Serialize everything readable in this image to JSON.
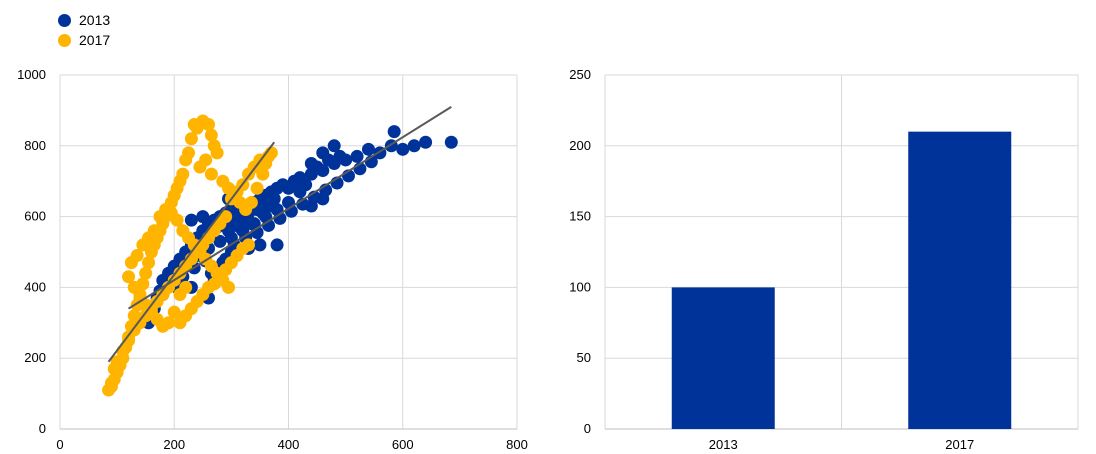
{
  "colors": {
    "s2013": "#003399",
    "s2017": "#FFB400",
    "trend": "#595959",
    "grid": "#d9d9d9"
  },
  "chart_data": [
    {
      "type": "scatter",
      "title": "",
      "xlabel": "",
      "ylabel": "",
      "xlim": [
        0,
        800
      ],
      "ylim": [
        0,
        1000
      ],
      "xticks": [
        "0",
        "200",
        "400",
        "600",
        "800"
      ],
      "yticks": [
        "0",
        "200",
        "400",
        "600",
        "800",
        "1000"
      ],
      "legend": "top-left",
      "grid": true,
      "series": [
        {
          "name": "2013",
          "color": "#003399",
          "points": [
            [
              150,
              350
            ],
            [
              160,
              330
            ],
            [
              170,
              370
            ],
            [
              175,
              390
            ],
            [
              180,
              420
            ],
            [
              185,
              400
            ],
            [
              190,
              440
            ],
            [
              195,
              430
            ],
            [
              200,
              460
            ],
            [
              205,
              450
            ],
            [
              210,
              480
            ],
            [
              215,
              470
            ],
            [
              220,
              500
            ],
            [
              225,
              490
            ],
            [
              230,
              520
            ],
            [
              235,
              510
            ],
            [
              240,
              540
            ],
            [
              245,
              530
            ],
            [
              250,
              560
            ],
            [
              255,
              550
            ],
            [
              260,
              580
            ],
            [
              265,
              560
            ],
            [
              270,
              590
            ],
            [
              275,
              570
            ],
            [
              280,
              600
            ],
            [
              285,
              580
            ],
            [
              290,
              610
            ],
            [
              295,
              560
            ],
            [
              300,
              620
            ],
            [
              305,
              590
            ],
            [
              310,
              600
            ],
            [
              315,
              570
            ],
            [
              320,
              630
            ],
            [
              325,
              600
            ],
            [
              330,
              610
            ],
            [
              335,
              580
            ],
            [
              340,
              640
            ],
            [
              345,
              620
            ],
            [
              350,
              650
            ],
            [
              355,
              610
            ],
            [
              360,
              660
            ],
            [
              365,
              630
            ],
            [
              370,
              670
            ],
            [
              375,
              650
            ],
            [
              380,
              680
            ],
            [
              390,
              690
            ],
            [
              400,
              680
            ],
            [
              410,
              700
            ],
            [
              420,
              710
            ],
            [
              430,
              690
            ],
            [
              440,
              720
            ],
            [
              450,
              740
            ],
            [
              460,
              730
            ],
            [
              470,
              760
            ],
            [
              480,
              750
            ],
            [
              490,
              770
            ],
            [
              500,
              760
            ],
            [
              520,
              770
            ],
            [
              540,
              790
            ],
            [
              560,
              780
            ],
            [
              580,
              800
            ],
            [
              600,
              790
            ],
            [
              620,
              800
            ],
            [
              640,
              810
            ],
            [
              685,
              810
            ],
            [
              585,
              840
            ],
            [
              480,
              800
            ],
            [
              460,
              780
            ],
            [
              440,
              750
            ],
            [
              420,
              670
            ],
            [
              400,
              640
            ],
            [
              380,
              620
            ],
            [
              360,
              600
            ],
            [
              340,
              580
            ],
            [
              320,
              560
            ],
            [
              300,
              540
            ],
            [
              280,
              530
            ],
            [
              260,
              510
            ],
            [
              240,
              490
            ],
            [
              220,
              470
            ],
            [
              200,
              420
            ],
            [
              180,
              380
            ],
            [
              165,
              340
            ],
            [
              155,
              300
            ],
            [
              230,
              400
            ],
            [
              260,
              370
            ],
            [
              270,
              420
            ],
            [
              290,
              480
            ],
            [
              300,
              500
            ],
            [
              330,
              510
            ],
            [
              350,
              520
            ],
            [
              380,
              520
            ],
            [
              310,
              640
            ],
            [
              295,
              650
            ],
            [
              250,
              600
            ],
            [
              230,
              590
            ],
            [
              205,
              400
            ],
            [
              215,
              430
            ],
            [
              235,
              455
            ],
            [
              255,
              475
            ],
            [
              265,
              440
            ],
            [
              285,
              470
            ],
            [
              305,
              520
            ],
            [
              325,
              540
            ],
            [
              345,
              555
            ],
            [
              365,
              575
            ],
            [
              385,
              595
            ],
            [
              405,
              615
            ],
            [
              425,
              635
            ],
            [
              445,
              655
            ],
            [
              465,
              675
            ],
            [
              485,
              695
            ],
            [
              505,
              715
            ],
            [
              525,
              735
            ],
            [
              545,
              755
            ],
            [
              440,
              630
            ],
            [
              460,
              650
            ]
          ]
        },
        {
          "name": "2017",
          "color": "#FFB400",
          "points": [
            [
              85,
              110
            ],
            [
              90,
              120
            ],
            [
              95,
              140
            ],
            [
              100,
              160
            ],
            [
              105,
              180
            ],
            [
              110,
              200
            ],
            [
              115,
              230
            ],
            [
              120,
              260
            ],
            [
              125,
              290
            ],
            [
              130,
              320
            ],
            [
              135,
              350
            ],
            [
              140,
              380
            ],
            [
              145,
              410
            ],
            [
              150,
              440
            ],
            [
              155,
              470
            ],
            [
              160,
              500
            ],
            [
              165,
              520
            ],
            [
              170,
              540
            ],
            [
              175,
              560
            ],
            [
              180,
              580
            ],
            [
              185,
              600
            ],
            [
              190,
              620
            ],
            [
              195,
              640
            ],
            [
              200,
              660
            ],
            [
              205,
              680
            ],
            [
              210,
              700
            ],
            [
              215,
              720
            ],
            [
              220,
              760
            ],
            [
              225,
              780
            ],
            [
              230,
              820
            ],
            [
              235,
              860
            ],
            [
              240,
              850
            ],
            [
              250,
              870
            ],
            [
              260,
              860
            ],
            [
              265,
              830
            ],
            [
              270,
              800
            ],
            [
              275,
              780
            ],
            [
              255,
              760
            ],
            [
              245,
              740
            ],
            [
              265,
              720
            ],
            [
              285,
              700
            ],
            [
              295,
              680
            ],
            [
              305,
              660
            ],
            [
              315,
              640
            ],
            [
              325,
              620
            ],
            [
              335,
              640
            ],
            [
              345,
              680
            ],
            [
              355,
              720
            ],
            [
              360,
              750
            ],
            [
              365,
              770
            ],
            [
              370,
              780
            ],
            [
              350,
              760
            ],
            [
              340,
              740
            ],
            [
              330,
              720
            ],
            [
              320,
              690
            ],
            [
              310,
              670
            ],
            [
              300,
              650
            ],
            [
              290,
              600
            ],
            [
              280,
              580
            ],
            [
              270,
              560
            ],
            [
              260,
              540
            ],
            [
              250,
              520
            ],
            [
              240,
              500
            ],
            [
              230,
              480
            ],
            [
              220,
              460
            ],
            [
              210,
              440
            ],
            [
              200,
              420
            ],
            [
              190,
              400
            ],
            [
              180,
              380
            ],
            [
              170,
              360
            ],
            [
              160,
              340
            ],
            [
              150,
              320
            ],
            [
              140,
              300
            ],
            [
              130,
              280
            ],
            [
              120,
              250
            ],
            [
              110,
              220
            ],
            [
              100,
              190
            ],
            [
              95,
              170
            ],
            [
              90,
              130
            ],
            [
              200,
              330
            ],
            [
              210,
              300
            ],
            [
              220,
              320
            ],
            [
              230,
              340
            ],
            [
              240,
              360
            ],
            [
              250,
              380
            ],
            [
              260,
              400
            ],
            [
              270,
              410
            ],
            [
              280,
              430
            ],
            [
              290,
              450
            ],
            [
              300,
              470
            ],
            [
              310,
              490
            ],
            [
              320,
              510
            ],
            [
              330,
              520
            ],
            [
              190,
              300
            ],
            [
              180,
              290
            ],
            [
              170,
              310
            ],
            [
              160,
              330
            ],
            [
              150,
              350
            ],
            [
              140,
              370
            ],
            [
              130,
              400
            ],
            [
              120,
              430
            ],
            [
              125,
              470
            ],
            [
              135,
              490
            ],
            [
              145,
              520
            ],
            [
              155,
              540
            ],
            [
              165,
              560
            ],
            [
              175,
              600
            ],
            [
              185,
              620
            ],
            [
              195,
              610
            ],
            [
              205,
              590
            ],
            [
              215,
              560
            ],
            [
              225,
              540
            ],
            [
              235,
              520
            ],
            [
              245,
              500
            ],
            [
              255,
              480
            ],
            [
              265,
              460
            ],
            [
              275,
              440
            ],
            [
              285,
              420
            ],
            [
              295,
              400
            ],
            [
              210,
              380
            ],
            [
              220,
              400
            ]
          ]
        }
      ],
      "trendlines": [
        {
          "series": "2013",
          "from": [
            120,
            340
          ],
          "to": [
            685,
            910
          ]
        },
        {
          "series": "2017",
          "from": [
            85,
            190
          ],
          "to": [
            375,
            810
          ]
        }
      ]
    },
    {
      "type": "bar",
      "title": "",
      "xlabel": "",
      "ylabel": "",
      "categories": [
        "2013",
        "2017"
      ],
      "values": [
        100,
        210
      ],
      "ylim": [
        0,
        250
      ],
      "yticks": [
        "0",
        "50",
        "100",
        "150",
        "200",
        "250"
      ],
      "grid": true,
      "color": "#003399"
    }
  ]
}
